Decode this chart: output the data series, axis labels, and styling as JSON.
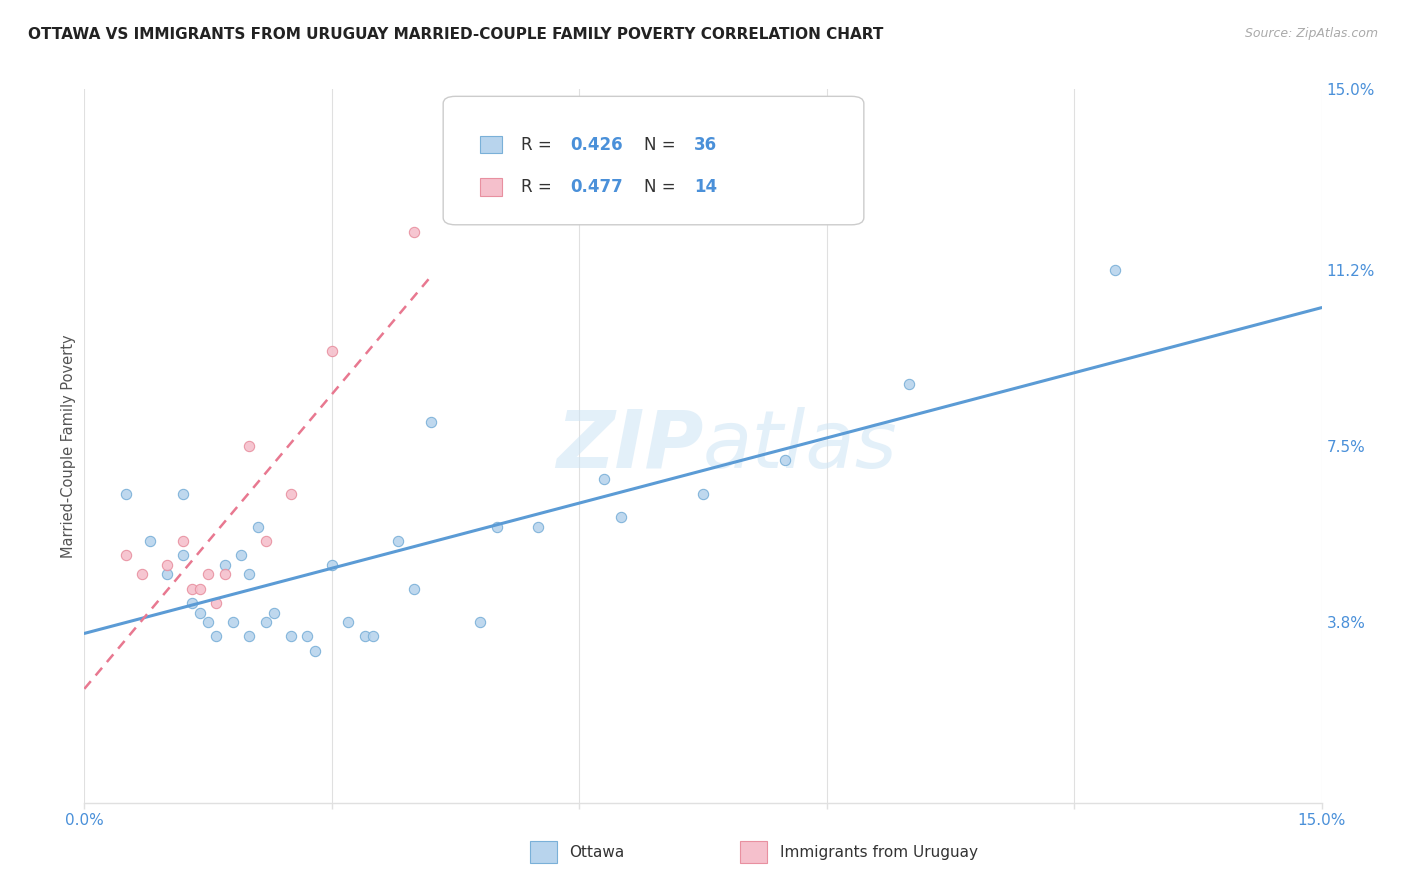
{
  "title": "OTTAWA VS IMMIGRANTS FROM URUGUAY MARRIED-COUPLE FAMILY POVERTY CORRELATION CHART",
  "source": "Source: ZipAtlas.com",
  "ylabel": "Married-Couple Family Poverty",
  "xlim": [
    0.0,
    0.15
  ],
  "ylim": [
    0.0,
    0.15
  ],
  "xticks": [
    0.0,
    0.03,
    0.06,
    0.09,
    0.12,
    0.15
  ],
  "xtick_labels": [
    "0.0%",
    "",
    "",
    "",
    "",
    "15.0%"
  ],
  "ytick_labels_right": [
    "15.0%",
    "11.2%",
    "7.5%",
    "3.8%",
    ""
  ],
  "yticks_right": [
    0.15,
    0.112,
    0.075,
    0.038,
    0.0
  ],
  "watermark": "ZIPatlas",
  "color_ottawa_fill": "#b8d4ed",
  "color_ottawa_edge": "#7ab0d8",
  "color_uruguay_fill": "#f5c0cc",
  "color_uruguay_edge": "#e890a0",
  "color_line_ottawa": "#5b9bd5",
  "color_line_uruguay": "#e87890",
  "color_title": "#222222",
  "color_source": "#aaaaaa",
  "color_accent": "#4a90d9",
  "color_grid": "#e0e0e0",
  "ottawa_x": [
    0.005,
    0.008,
    0.01,
    0.012,
    0.012,
    0.013,
    0.014,
    0.015,
    0.016,
    0.017,
    0.018,
    0.019,
    0.02,
    0.02,
    0.021,
    0.022,
    0.023,
    0.025,
    0.027,
    0.028,
    0.03,
    0.032,
    0.034,
    0.035,
    0.038,
    0.04,
    0.042,
    0.048,
    0.05,
    0.055,
    0.063,
    0.065,
    0.075,
    0.085,
    0.1,
    0.125
  ],
  "ottawa_y": [
    0.065,
    0.055,
    0.048,
    0.065,
    0.052,
    0.042,
    0.04,
    0.038,
    0.035,
    0.05,
    0.038,
    0.052,
    0.048,
    0.035,
    0.058,
    0.038,
    0.04,
    0.035,
    0.035,
    0.032,
    0.05,
    0.038,
    0.035,
    0.035,
    0.055,
    0.045,
    0.08,
    0.038,
    0.058,
    0.058,
    0.068,
    0.06,
    0.065,
    0.072,
    0.088,
    0.112
  ],
  "uruguay_x": [
    0.005,
    0.007,
    0.01,
    0.012,
    0.013,
    0.014,
    0.015,
    0.016,
    0.017,
    0.02,
    0.022,
    0.025,
    0.03,
    0.04
  ],
  "uruguay_y": [
    0.052,
    0.048,
    0.05,
    0.055,
    0.045,
    0.045,
    0.048,
    0.042,
    0.048,
    0.075,
    0.055,
    0.065,
    0.095,
    0.12
  ],
  "background_color": "#ffffff"
}
